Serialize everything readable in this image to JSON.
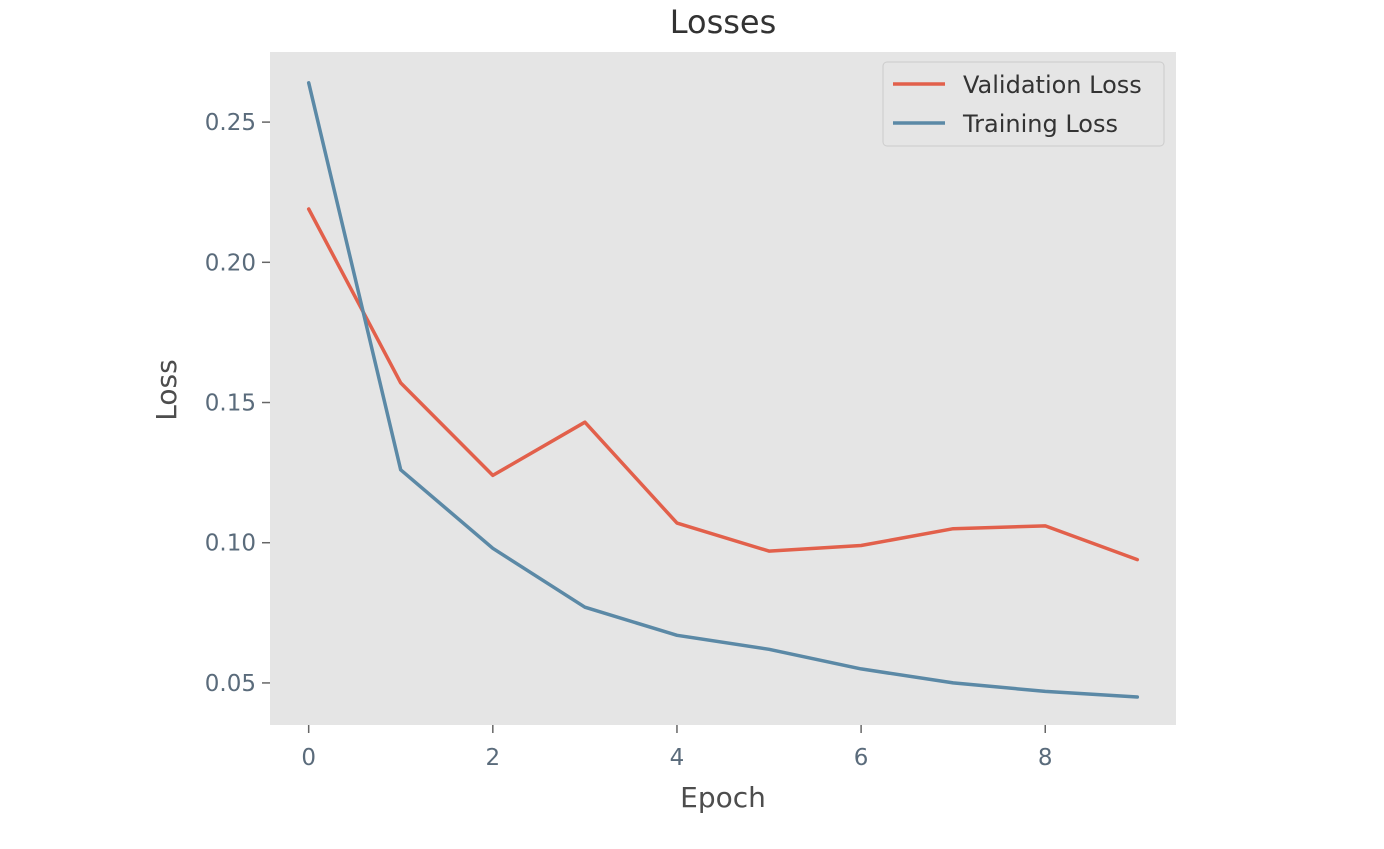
{
  "chart_data": {
    "type": "line",
    "title": "Losses",
    "xlabel": "Epoch",
    "ylabel": "Loss",
    "x": [
      0,
      1,
      2,
      3,
      4,
      5,
      6,
      7,
      8,
      9
    ],
    "xlim": [
      -0.42,
      9.42
    ],
    "ylim": [
      0.035,
      0.275
    ],
    "xticks": [
      0,
      2,
      4,
      6,
      8
    ],
    "xtick_labels": [
      "0",
      "2",
      "4",
      "6",
      "8"
    ],
    "yticks": [
      0.05,
      0.1,
      0.15,
      0.2,
      0.25
    ],
    "ytick_labels": [
      "0.05",
      "0.10",
      "0.15",
      "0.20",
      "0.25"
    ],
    "grid": false,
    "legend_position": "top-right",
    "series": [
      {
        "name": "Validation Loss",
        "color": "#e2604b",
        "values": [
          0.219,
          0.157,
          0.124,
          0.143,
          0.107,
          0.097,
          0.099,
          0.105,
          0.106,
          0.094
        ]
      },
      {
        "name": "Training Loss",
        "color": "#5b89a6",
        "values": [
          0.264,
          0.126,
          0.098,
          0.077,
          0.067,
          0.062,
          0.055,
          0.05,
          0.047,
          0.045
        ]
      }
    ]
  }
}
